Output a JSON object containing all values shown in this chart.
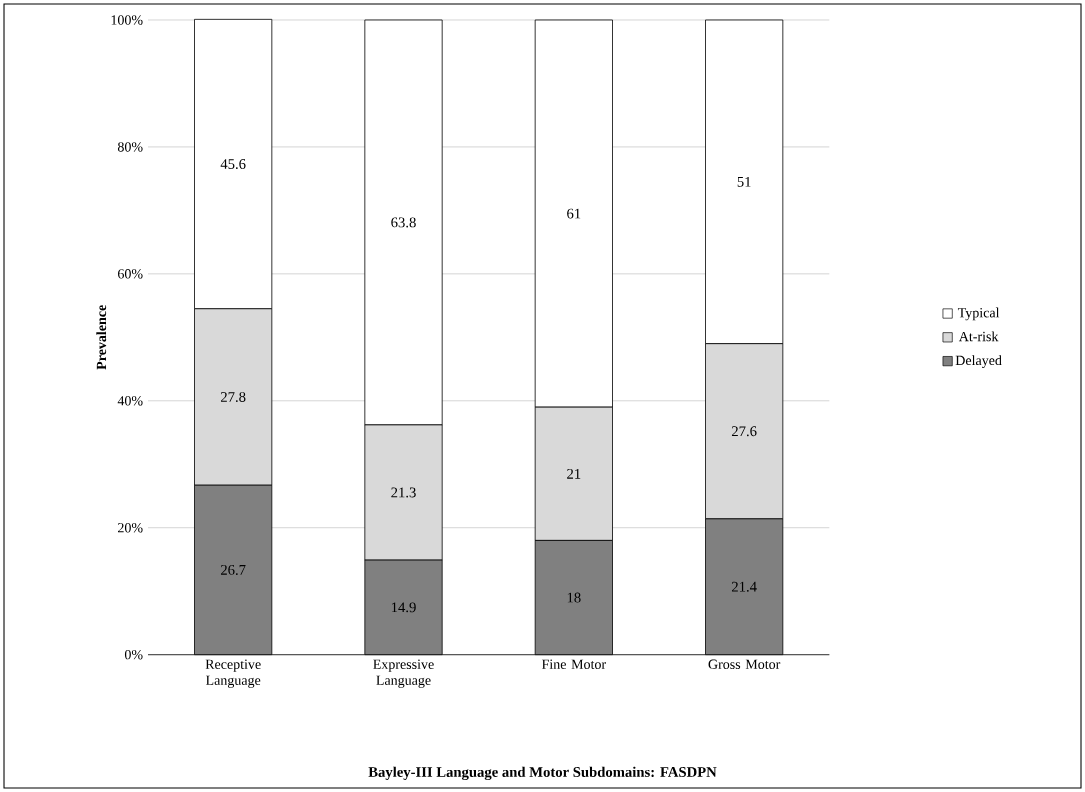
{
  "chart_data": {
    "type": "bar",
    "stacked": true,
    "title": "Bayley-III Language and Motor Subdomains: FASDPN",
    "ylabel": "Prevalence",
    "categories": [
      "Receptive Language",
      "Expressive Language",
      "Fine Motor",
      "Gross Motor"
    ],
    "series": [
      {
        "name": "Delayed",
        "color": "#808080",
        "values": [
          26.7,
          14.9,
          18,
          21.4
        ]
      },
      {
        "name": "At-risk",
        "color": "#d9d9d9",
        "values": [
          27.8,
          21.3,
          21,
          27.6
        ]
      },
      {
        "name": "Typical",
        "color": "#ffffff",
        "values": [
          45.6,
          63.8,
          61,
          51
        ]
      }
    ],
    "ylim": [
      0,
      100
    ],
    "yticks": [
      {
        "value": 0,
        "label": "0%"
      },
      {
        "value": 20,
        "label": "20%"
      },
      {
        "value": 40,
        "label": "40%"
      },
      {
        "value": 60,
        "label": "60%"
      },
      {
        "value": 80,
        "label": "80%"
      },
      {
        "value": 100,
        "label": "100%"
      }
    ],
    "grid": "y",
    "legend": "right",
    "data_labels": true
  }
}
